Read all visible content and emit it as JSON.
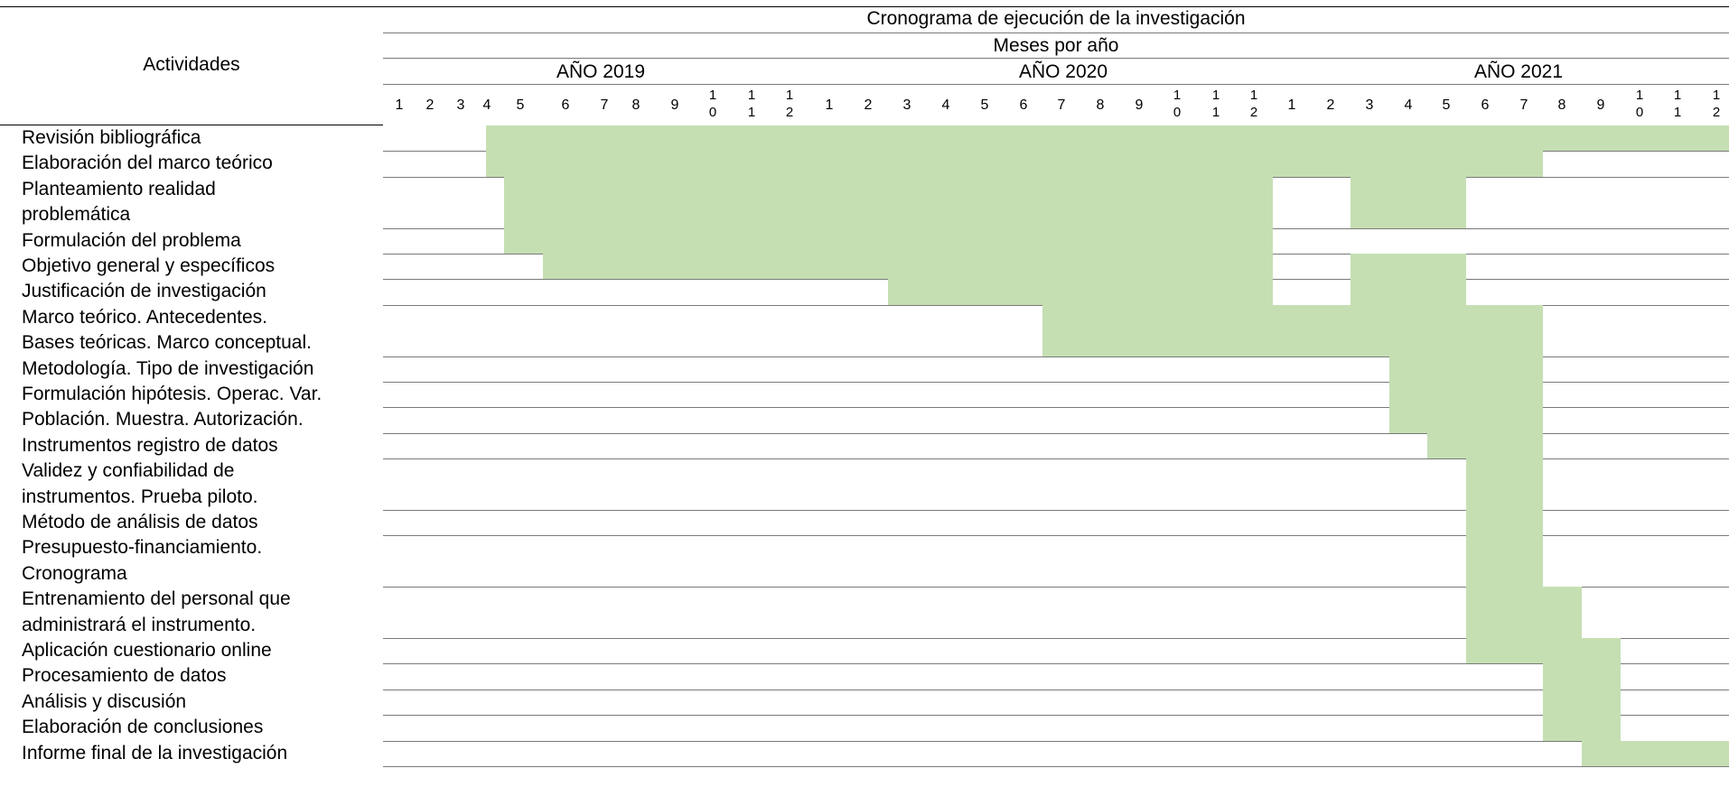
{
  "table": {
    "title": "Cronograma de ejecución de la investigación",
    "subtitle": "Meses por año",
    "activities_header": "Actividades",
    "years": [
      "AÑO 2019",
      "AÑO 2020",
      "AÑO 2021"
    ],
    "months": [
      "1",
      "2",
      "3",
      "4",
      "5",
      "6",
      "7",
      "8",
      "9",
      "10",
      "11",
      "12",
      "1",
      "2",
      "3",
      "4",
      "5",
      "6",
      "7",
      "8",
      "9",
      "10",
      "11",
      "12",
      "1",
      "2",
      "3",
      "4",
      "5",
      "6",
      "7",
      "8",
      "9",
      "10",
      "11",
      "12"
    ],
    "activities": [
      {
        "lines": [
          "Revisión bibliográfica"
        ],
        "bars": [
          [
            3.4,
            36
          ]
        ]
      },
      {
        "lines": [
          "Elaboración del marco teórico"
        ],
        "bars": [
          [
            3.4,
            31
          ]
        ]
      },
      {
        "lines": [
          "Planteamiento realidad",
          "problemática"
        ],
        "bars": [
          [
            4,
            24
          ],
          [
            26,
            29
          ]
        ]
      },
      {
        "lines": [
          "Formulación del problema"
        ],
        "bars": [
          [
            4,
            24
          ]
        ]
      },
      {
        "lines": [
          "Objetivo general y específicos"
        ],
        "bars": [
          [
            5,
            24
          ],
          [
            26,
            29
          ]
        ]
      },
      {
        "lines": [
          "Justificación de investigación"
        ],
        "bars": [
          [
            14,
            24
          ],
          [
            26,
            29
          ]
        ]
      },
      {
        "lines": [
          "Marco teórico. Antecedentes.",
          "Bases teóricas. Marco conceptual."
        ],
        "bars": [
          [
            18,
            31
          ]
        ]
      },
      {
        "lines": [
          "Metodología. Tipo de investigación"
        ],
        "bars": [
          [
            27,
            31
          ]
        ]
      },
      {
        "lines": [
          "Formulación hipótesis. Operac. Var."
        ],
        "bars": [
          [
            27,
            31
          ]
        ]
      },
      {
        "lines": [
          "Población. Muestra. Autorización."
        ],
        "bars": [
          [
            27,
            31
          ]
        ]
      },
      {
        "lines": [
          "Instrumentos registro de datos"
        ],
        "bars": [
          [
            28,
            31
          ]
        ]
      },
      {
        "lines": [
          "Validez y confiabilidad de",
          "instrumentos. Prueba piloto."
        ],
        "bars": [
          [
            29,
            31
          ]
        ]
      },
      {
        "lines": [
          "Método de análisis de datos"
        ],
        "bars": [
          [
            29,
            31
          ]
        ]
      },
      {
        "lines": [
          "Presupuesto-financiamiento.",
          "Cronograma"
        ],
        "bars": [
          [
            29,
            31
          ]
        ]
      },
      {
        "lines": [
          "Entrenamiento del personal que",
          "administrará el instrumento."
        ],
        "bars": [
          [
            29,
            32
          ]
        ]
      },
      {
        "lines": [
          "Aplicación cuestionario online"
        ],
        "bars": [
          [
            29,
            33
          ]
        ]
      },
      {
        "lines": [
          "Procesamiento de datos"
        ],
        "bars": [
          [
            31,
            33
          ]
        ]
      },
      {
        "lines": [
          "Análisis y discusión"
        ],
        "bars": [
          [
            31,
            33
          ]
        ]
      },
      {
        "lines": [
          "Elaboración de conclusiones"
        ],
        "bars": [
          [
            31,
            33
          ]
        ]
      },
      {
        "lines": [
          "Informe final de la investigación"
        ],
        "bars": [
          [
            32,
            36
          ]
        ]
      }
    ]
  }
}
